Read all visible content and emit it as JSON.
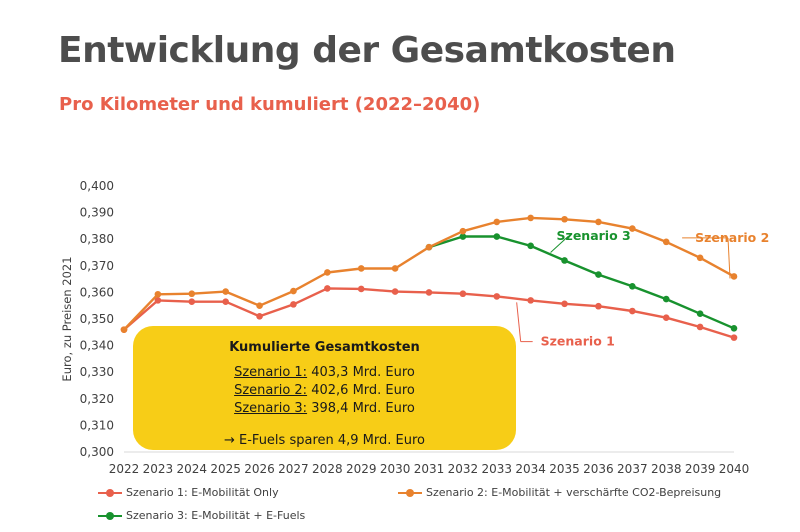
{
  "header": {
    "title": "Entwicklung der Gesamtkosten",
    "subtitle": "Pro Kilometer und kumuliert (2022–2040)"
  },
  "colors": {
    "s1": "#e8604c",
    "s2": "#e8822e",
    "s3": "#18922e",
    "box": "#f7cd17",
    "title": "#4d4d4d"
  },
  "chart_data": {
    "type": "line",
    "title": "Entwicklung der Gesamtkosten",
    "subtitle": "Pro Kilometer und kumuliert (2022–2040)",
    "xlabel": "",
    "ylabel": "Euro, zu Preisen 2021",
    "ylim": [
      0.3,
      0.4
    ],
    "yticks": [
      "0,300",
      "0,310",
      "0,320",
      "0,330",
      "0,340",
      "0,350",
      "0,360",
      "0,370",
      "0,380",
      "0,390",
      "0,400"
    ],
    "categories": [
      "2022",
      "2023",
      "2024",
      "2025",
      "2026",
      "2027",
      "2028",
      "2029",
      "2030",
      "2031",
      "2032",
      "2033",
      "2034",
      "2035",
      "2036",
      "2037",
      "2038",
      "2039",
      "2040"
    ],
    "series": [
      {
        "name": "Szenario 1: E-Mobilität Only",
        "label": "Szenario 1",
        "color": "#e8604c",
        "values": [
          0.346,
          0.357,
          0.3565,
          0.3565,
          0.351,
          0.3555,
          0.3615,
          0.3613,
          0.3603,
          0.36,
          0.3595,
          0.3585,
          0.357,
          0.3557,
          0.3548,
          0.353,
          0.3505,
          0.347,
          0.343
        ]
      },
      {
        "name": "Szenario 2: E-Mobilität + verschärfte CO2-Bepreisung",
        "label": "Szenario 2",
        "color": "#e8822e",
        "values": [
          0.346,
          0.3593,
          0.3595,
          0.3603,
          0.355,
          0.3605,
          0.3675,
          0.369,
          0.369,
          0.377,
          0.383,
          0.3865,
          0.388,
          0.3875,
          0.3865,
          0.384,
          0.379,
          0.373,
          0.366
        ]
      },
      {
        "name": "Szenario 3: E-Mobilität + E-Fuels",
        "label": "Szenario 3",
        "color": "#18922e",
        "values": [
          null,
          null,
          null,
          null,
          null,
          null,
          null,
          null,
          null,
          0.377,
          0.381,
          0.381,
          0.3775,
          0.372,
          0.3667,
          0.3623,
          0.3575,
          0.352,
          0.3465
        ]
      }
    ],
    "legend": [
      "Szenario 1: E-Mobilität Only",
      "Szenario 2: E-Mobilität + verschärfte CO2-Bepreisung",
      "Szenario 3: E-Mobilität + E-Fuels"
    ],
    "legend_position": "bottom"
  },
  "summary_box": {
    "title": "Kumulierte Gesamtkosten",
    "lines": [
      {
        "scenario": "Szenario 1:",
        "value": "403,3 Mrd. Euro"
      },
      {
        "scenario": "Szenario 2:",
        "value": "402,6 Mrd. Euro"
      },
      {
        "scenario": "Szenario 3:",
        "value": "398,4 Mrd. Euro"
      }
    ],
    "note": "→ E-Fuels sparen 4,9 Mrd. Euro"
  }
}
